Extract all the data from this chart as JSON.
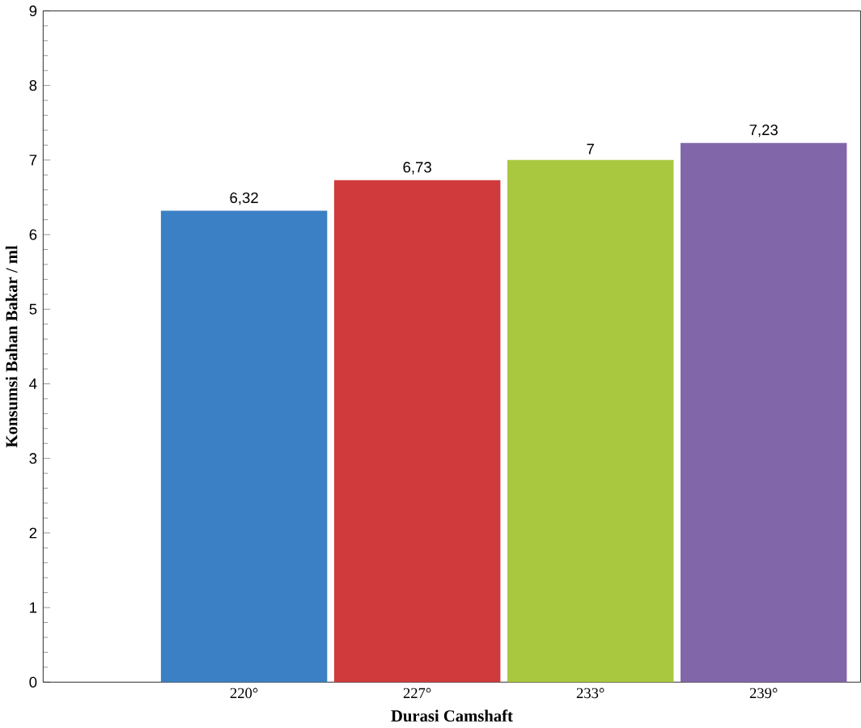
{
  "chart_data": {
    "type": "bar",
    "xlabel": "Durasi Camshaft",
    "ylabel": "Konsumsi Bahan Bakar / ml",
    "categories": [
      "220°",
      "227°",
      "233°",
      "239°"
    ],
    "values": [
      6.32,
      6.73,
      7,
      7.23
    ],
    "colors": [
      "#3b7fc4",
      "#d03a3c",
      "#a9c840",
      "#8166a9"
    ],
    "value_labels": [
      "6,32",
      "6,73",
      "7",
      "7,23"
    ],
    "ylim": [
      0,
      9
    ],
    "yticks": [
      0,
      1,
      2,
      3,
      4,
      5,
      6,
      7,
      8,
      9
    ],
    "grid": false
  }
}
